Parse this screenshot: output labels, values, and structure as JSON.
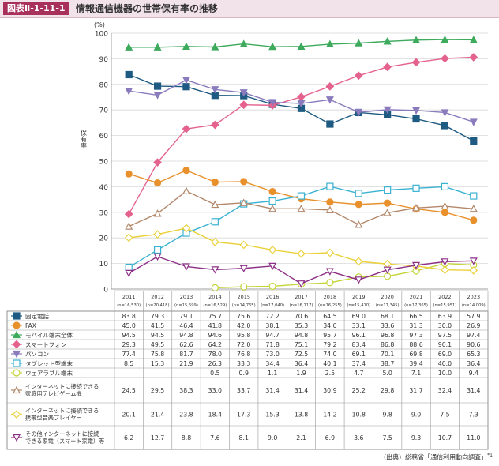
{
  "figure": {
    "badge": "図表Ⅱ-1-11-1",
    "title": "情報通信機器の世帯保有率の推移"
  },
  "source": {
    "text": "（出典）総務省「通信利用動向調査」",
    "note": "*1"
  },
  "chart_data": {
    "type": "line",
    "y_unit": "(%)",
    "ylabel": "保有率",
    "ylim": [
      0,
      100
    ],
    "y_ticks": [
      0,
      10,
      20,
      30,
      40,
      50,
      60,
      70,
      80,
      90,
      100
    ],
    "grid": true,
    "x": [
      "2011",
      "2012",
      "2013",
      "2014",
      "2015",
      "2016",
      "2017",
      "2018",
      "2019",
      "2020",
      "2021",
      "2022",
      "2023"
    ],
    "x_sub": [
      "(n=16,530)",
      "(n=20,418)",
      "(n=15,599)",
      "(n=16,529)",
      "(n=14,765)",
      "(n=17,040)",
      "(n=16,117)",
      "(n=16,255)",
      "(n=15,410)",
      "(n=17,345)",
      "(n=17,365)",
      "(n=15,951)",
      "(n=14,009)"
    ],
    "series": [
      {
        "name": "固定電話",
        "color": "#1e5a82",
        "marker": "square-filled",
        "values": [
          "83.8",
          "79.3",
          "79.1",
          "75.7",
          "75.6",
          "72.2",
          "70.6",
          "64.5",
          "69.0",
          "68.1",
          "66.5",
          "63.9",
          "57.9"
        ]
      },
      {
        "name": "FAX",
        "color": "#e8912c",
        "marker": "circle-filled",
        "values": [
          "45.0",
          "41.5",
          "46.4",
          "41.8",
          "42.0",
          "38.1",
          "35.3",
          "34.0",
          "33.1",
          "33.6",
          "31.3",
          "30.0",
          "26.9"
        ]
      },
      {
        "name": "モバイル端末全体",
        "color": "#3daa5c",
        "marker": "triangle-filled",
        "values": [
          "94.5",
          "94.5",
          "94.8",
          "94.6",
          "95.8",
          "94.7",
          "94.8",
          "95.7",
          "96.1",
          "96.8",
          "97.3",
          "97.5",
          "97.4"
        ]
      },
      {
        "name": "スマートフォン",
        "color": "#e4628d",
        "marker": "diamond-filled",
        "values": [
          "29.3",
          "49.5",
          "62.6",
          "64.2",
          "72.0",
          "71.8",
          "75.1",
          "79.2",
          "83.4",
          "86.8",
          "88.6",
          "90.1",
          "90.6"
        ]
      },
      {
        "name": "パソコン",
        "color": "#8a7bbd",
        "marker": "triangle-down-filled",
        "values": [
          "77.4",
          "75.8",
          "81.7",
          "78.0",
          "76.8",
          "73.0",
          "72.5",
          "74.0",
          "69.1",
          "70.1",
          "69.8",
          "69.0",
          "65.3"
        ]
      },
      {
        "name": "タブレット型端末",
        "color": "#3ab1d1",
        "marker": "square-open",
        "values": [
          "8.5",
          "15.3",
          "21.9",
          "26.3",
          "33.3",
          "34.4",
          "36.4",
          "40.1",
          "37.4",
          "38.7",
          "39.4",
          "40.0",
          "36.4"
        ]
      },
      {
        "name": "ウェアラブル端末",
        "color": "#c5d43a",
        "marker": "circle-open",
        "values": [
          "",
          "",
          "",
          "0.5",
          "0.9",
          "1.1",
          "1.9",
          "2.5",
          "4.7",
          "5.0",
          "7.1",
          "10.0",
          "9.4"
        ]
      },
      {
        "name": "インターネットに接続できる家庭用テレビゲーム機",
        "color": "#b2876a",
        "marker": "triangle-open",
        "values": [
          "24.5",
          "29.5",
          "38.3",
          "33.0",
          "33.7",
          "31.4",
          "31.4",
          "30.9",
          "25.2",
          "29.8",
          "31.7",
          "32.4",
          "31.4"
        ]
      },
      {
        "name": "インターネットに接続できる携帯型音楽プレイヤー",
        "color": "#ead13a",
        "marker": "diamond-open",
        "values": [
          "20.1",
          "21.4",
          "23.8",
          "18.4",
          "17.3",
          "15.3",
          "13.8",
          "14.2",
          "10.8",
          "9.8",
          "9.0",
          "7.5",
          "7.3"
        ]
      },
      {
        "name": "その他インターネットに接続できる家電（スマート家電）等",
        "color": "#8c2f86",
        "marker": "triangle-down-open",
        "values": [
          "6.2",
          "12.7",
          "8.8",
          "7.6",
          "8.1",
          "9.0",
          "2.1",
          "6.9",
          "3.6",
          "7.5",
          "9.3",
          "10.7",
          "11.0"
        ]
      }
    ]
  }
}
